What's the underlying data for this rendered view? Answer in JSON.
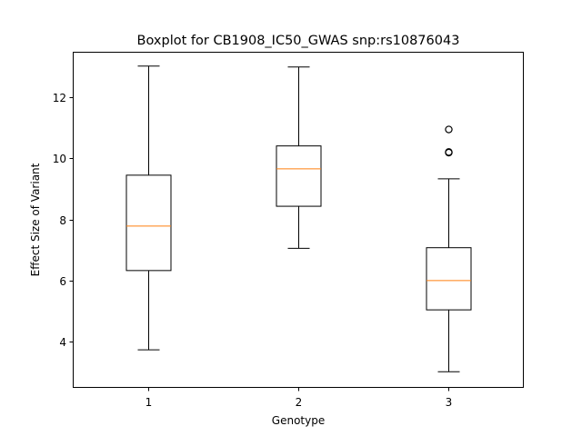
{
  "chart_data": {
    "type": "boxplot",
    "title": "Boxplot for CB1908_IC50_GWAS snp:rs10876043",
    "xlabel": "Genotype",
    "ylabel": "Effect Size of Variant",
    "ylim": [
      2.5,
      13.5
    ],
    "yticks": [
      4,
      6,
      8,
      10,
      12
    ],
    "categories": [
      "1",
      "2",
      "3"
    ],
    "boxes": [
      {
        "category": "1",
        "whisker_low": 3.72,
        "q1": 6.32,
        "median": 7.78,
        "q3": 9.45,
        "whisker_high": 13.03,
        "outliers": []
      },
      {
        "category": "2",
        "whisker_low": 7.05,
        "q1": 8.43,
        "median": 9.66,
        "q3": 10.41,
        "whisker_high": 13.0,
        "outliers": []
      },
      {
        "category": "3",
        "whisker_low": 3.0,
        "q1": 5.03,
        "median": 5.99,
        "q3": 7.07,
        "whisker_high": 9.33,
        "outliers": [
          10.21,
          10.19,
          10.95
        ]
      }
    ],
    "grid": false,
    "colors": {
      "box": "#000000",
      "median": "#ff7f0e"
    }
  }
}
